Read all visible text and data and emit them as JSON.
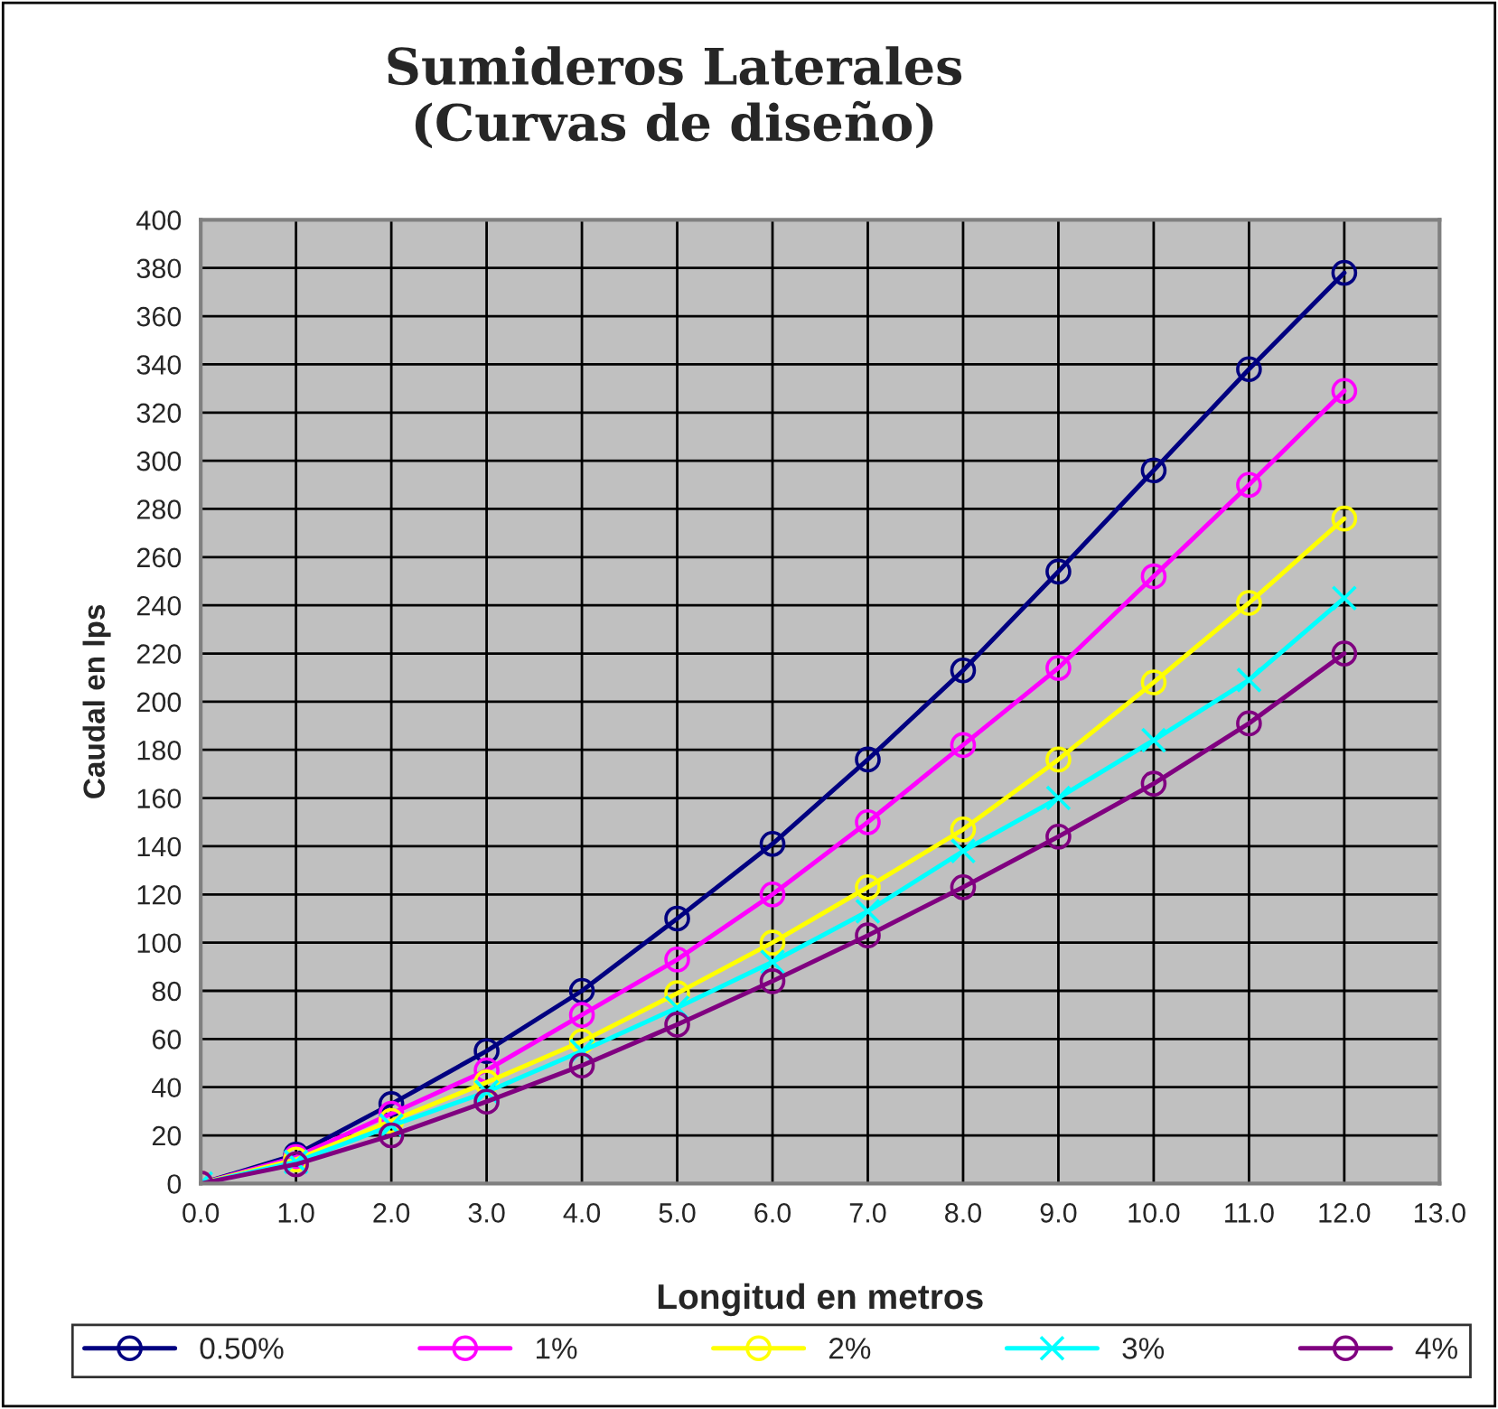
{
  "chart_data": {
    "type": "line",
    "title": "Sumideros Laterales\n(Curvas de diseño)",
    "xlabel": "Longitud en metros",
    "ylabel": "Caudal en lps",
    "x": [
      0,
      1,
      2,
      3,
      4,
      5,
      6,
      7,
      8,
      9,
      10,
      11,
      12
    ],
    "series": [
      {
        "name": "0.50%",
        "color": "#000080",
        "marker": "circle",
        "values": [
          0,
          12,
          33,
          55,
          80,
          110,
          141,
          176,
          213,
          254,
          296,
          338,
          378
        ]
      },
      {
        "name": "1%",
        "color": "#ff00ff",
        "marker": "circle",
        "values": [
          0,
          11,
          29,
          47,
          70,
          93,
          120,
          150,
          182,
          214,
          252,
          290,
          329
        ]
      },
      {
        "name": "2%",
        "color": "#ffff00",
        "marker": "circle",
        "values": [
          0,
          10,
          26,
          42,
          59,
          79,
          100,
          123,
          147,
          176,
          208,
          241,
          276
        ]
      },
      {
        "name": "3%",
        "color": "#00ffff",
        "marker": "cross",
        "values": [
          0,
          9,
          24,
          38,
          55,
          73,
          92,
          113,
          138,
          160,
          184,
          209,
          243
        ]
      },
      {
        "name": "4%",
        "color": "#800080",
        "marker": "circle",
        "values": [
          0,
          8,
          20,
          34,
          49,
          66,
          84,
          103,
          123,
          144,
          166,
          191,
          220
        ]
      }
    ],
    "xlim": [
      0,
      13
    ],
    "xticks": [
      {
        "value": 0,
        "label": "0.0"
      },
      {
        "value": 1,
        "label": "1.0"
      },
      {
        "value": 2,
        "label": "2.0"
      },
      {
        "value": 3,
        "label": "3.0"
      },
      {
        "value": 4,
        "label": "4.0"
      },
      {
        "value": 5,
        "label": "5.0"
      },
      {
        "value": 6,
        "label": "6.0"
      },
      {
        "value": 7,
        "label": "7.0"
      },
      {
        "value": 8,
        "label": "8.0"
      },
      {
        "value": 9,
        "label": "9.0"
      },
      {
        "value": 10,
        "label": "10.0"
      },
      {
        "value": 11,
        "label": "11.0"
      },
      {
        "value": 12,
        "label": "12.0"
      },
      {
        "value": 13,
        "label": "13.0"
      }
    ],
    "ylim": [
      0,
      400
    ],
    "yticks": [
      0,
      20,
      40,
      60,
      80,
      100,
      120,
      140,
      160,
      180,
      200,
      220,
      240,
      260,
      280,
      300,
      320,
      340,
      360,
      380,
      400
    ],
    "grid": true,
    "legend": "bottom",
    "line_style": "solid"
  }
}
